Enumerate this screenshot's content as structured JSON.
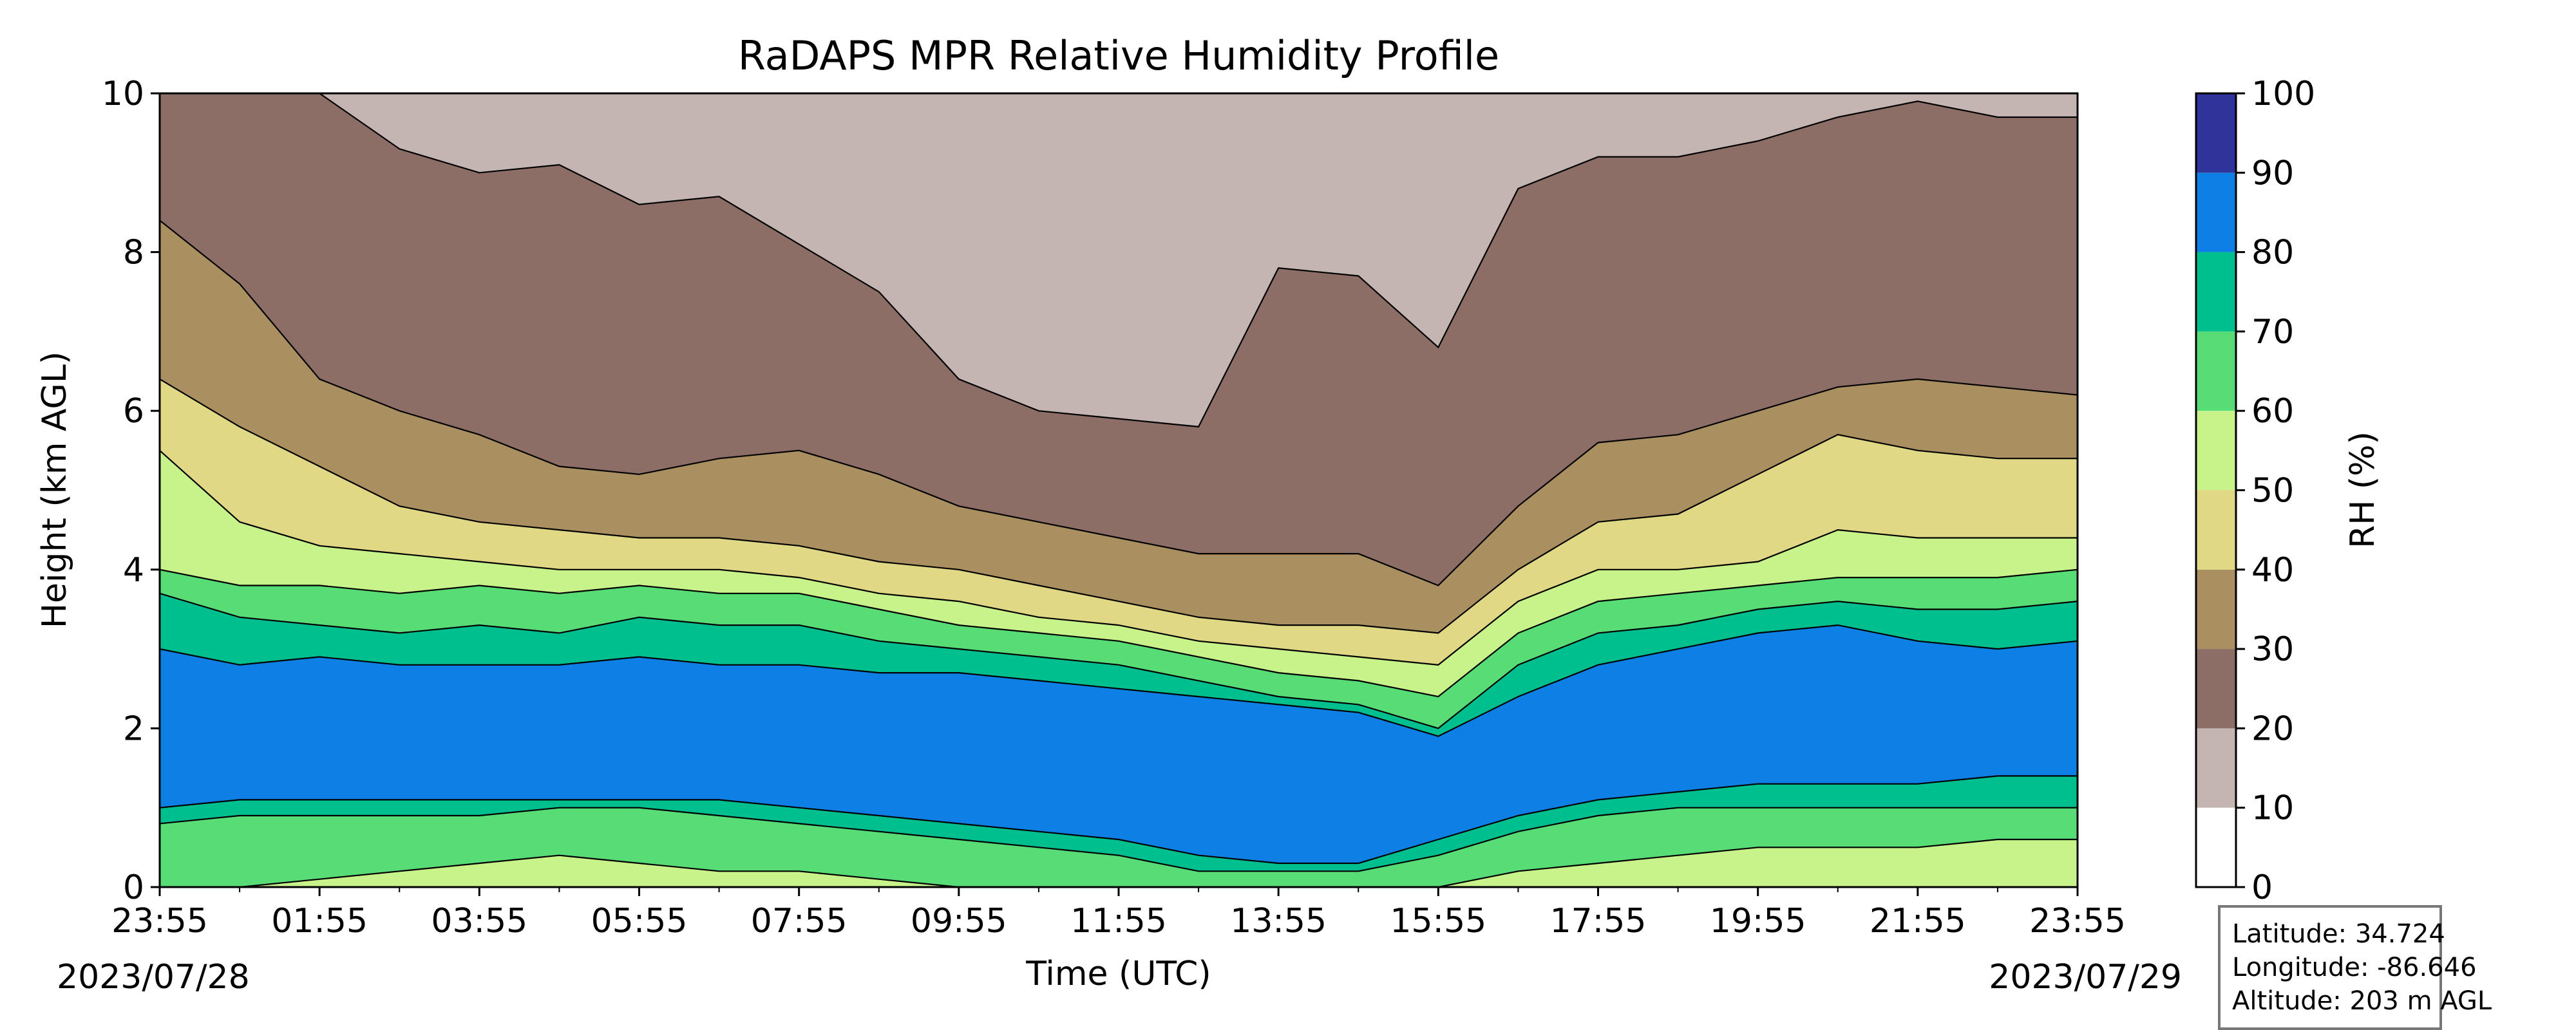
{
  "chart_data": {
    "type": "heatmap",
    "title": "RaDAPS MPR Relative Humidity Profile",
    "xlabel": "Time (UTC)",
    "ylabel": "Height (km AGL)",
    "ylim": [
      0,
      10
    ],
    "y_ticks": [
      "0",
      "2",
      "4",
      "6",
      "8",
      "10"
    ],
    "x_ticks": [
      "23:55",
      "01:55",
      "03:55",
      "05:55",
      "07:55",
      "09:55",
      "11:55",
      "13:55",
      "15:55",
      "17:55",
      "19:55",
      "21:55",
      "23:55"
    ],
    "start_date": "2023/07/28",
    "end_date": "2023/07/29",
    "colorbar": {
      "label": "RH (%)",
      "levels": [
        0,
        10,
        20,
        30,
        40,
        50,
        60,
        70,
        80,
        90,
        100
      ],
      "tick_labels": [
        "0",
        "10",
        "20",
        "30",
        "40",
        "50",
        "60",
        "70",
        "80",
        "90",
        "100"
      ],
      "colors": [
        "#ffffff",
        "#c4b5b3",
        "#8c6e66",
        "#aa9060",
        "#e1d886",
        "#c8f28a",
        "#57dc76",
        "#00bf8f",
        "#0e80e5",
        "#303399"
      ]
    },
    "contour_boundaries_km": {
      "x_hours": [
        0,
        1,
        2,
        3,
        4,
        5,
        6,
        7,
        8,
        9,
        10,
        11,
        12,
        13,
        14,
        15,
        16,
        17,
        18,
        19,
        20,
        21,
        22,
        23,
        24
      ],
      "rh_10": [
        10,
        10,
        10,
        9.3,
        9.0,
        9.1,
        8.6,
        8.7,
        8.1,
        7.5,
        6.4,
        6.0,
        5.9,
        5.8,
        7.8,
        7.7,
        6.8,
        8.8,
        9.2,
        9.2,
        9.4,
        9.7,
        9.9,
        9.7,
        9.7
      ],
      "rh_20": [
        8.4,
        7.6,
        6.4,
        6.0,
        5.7,
        5.3,
        5.2,
        5.4,
        5.5,
        5.2,
        4.8,
        4.6,
        4.4,
        4.2,
        4.2,
        4.2,
        3.8,
        4.8,
        5.6,
        5.7,
        6.0,
        6.3,
        6.4,
        6.3,
        6.2
      ],
      "rh_30": [
        6.4,
        5.8,
        5.3,
        4.8,
        4.6,
        4.5,
        4.4,
        4.4,
        4.3,
        4.1,
        4.0,
        3.8,
        3.6,
        3.4,
        3.3,
        3.3,
        3.2,
        4.0,
        4.6,
        4.7,
        5.2,
        5.7,
        5.5,
        5.4,
        5.4
      ],
      "rh_40": [
        5.5,
        4.6,
        4.3,
        4.2,
        4.1,
        4.0,
        4.0,
        4.0,
        3.9,
        3.7,
        3.6,
        3.4,
        3.3,
        3.1,
        3.0,
        2.9,
        2.8,
        3.6,
        4.0,
        4.0,
        4.1,
        4.5,
        4.4,
        4.4,
        4.4
      ],
      "rh_50": [
        4.0,
        3.8,
        3.8,
        3.7,
        3.8,
        3.7,
        3.8,
        3.7,
        3.7,
        3.5,
        3.3,
        3.2,
        3.1,
        2.9,
        2.7,
        2.6,
        2.4,
        3.2,
        3.6,
        3.7,
        3.8,
        3.9,
        3.9,
        3.9,
        4.0
      ],
      "rh_60": [
        3.7,
        3.4,
        3.3,
        3.2,
        3.3,
        3.2,
        3.4,
        3.3,
        3.3,
        3.1,
        3.0,
        2.9,
        2.8,
        2.6,
        2.4,
        2.3,
        2.0,
        2.8,
        3.2,
        3.3,
        3.5,
        3.6,
        3.5,
        3.5,
        3.6
      ],
      "rh_70": [
        3.0,
        2.8,
        2.9,
        2.8,
        2.8,
        2.8,
        2.9,
        2.8,
        2.8,
        2.7,
        2.7,
        2.6,
        2.5,
        2.4,
        2.3,
        2.2,
        1.9,
        2.4,
        2.8,
        3.0,
        3.2,
        3.3,
        3.1,
        3.0,
        3.1
      ],
      "rh_80_lower": [
        1.0,
        1.1,
        1.1,
        1.1,
        1.1,
        1.1,
        1.1,
        1.1,
        1.0,
        0.9,
        0.8,
        0.7,
        0.6,
        0.4,
        0.3,
        0.3,
        0.6,
        0.9,
        1.1,
        1.2,
        1.3,
        1.3,
        1.3,
        1.4,
        1.4
      ],
      "rh_70_lower": [
        0.8,
        0.9,
        0.9,
        0.9,
        0.9,
        1.0,
        1.0,
        0.9,
        0.8,
        0.7,
        0.6,
        0.5,
        0.4,
        0.2,
        0.2,
        0.2,
        0.4,
        0.7,
        0.9,
        1.0,
        1.0,
        1.0,
        1.0,
        1.0,
        1.0
      ],
      "rh_60_lower": [
        0.0,
        0.0,
        0.1,
        0.2,
        0.3,
        0.4,
        0.3,
        0.2,
        0.2,
        0.1,
        0.0,
        0.0,
        0.0,
        0.0,
        0.0,
        0.0,
        0.0,
        0.2,
        0.3,
        0.4,
        0.5,
        0.5,
        0.5,
        0.6,
        0.6
      ]
    }
  },
  "info_box": {
    "latitude": "Latitude: 34.724",
    "longitude": "Longitude: -86.646",
    "altitude": "Altitude: 203 m AGL"
  }
}
